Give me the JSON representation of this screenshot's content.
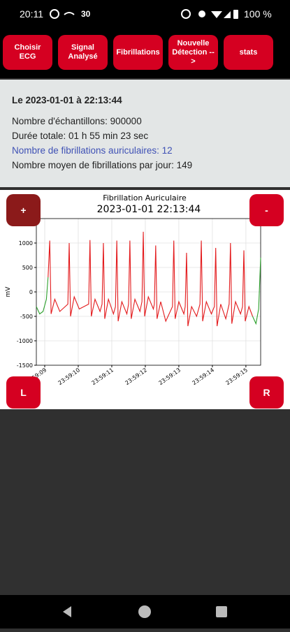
{
  "status_bar": {
    "time": "20:11",
    "network": "30",
    "battery": "100 %"
  },
  "toolbar": {
    "buttons": [
      "Choisir ECG",
      "Signal Analysé",
      "Fibrillations",
      "Nouvelle Détection -->",
      "stats"
    ]
  },
  "info": {
    "title": "Le 2023-01-01 à 22:13:44",
    "lines": [
      "Nombre d'échantillons: 900000",
      "Durée totale: 01 h 55 min 23 sec",
      "Nombre de fibrillations auriculaires: 12",
      "Nombre moyen de fibrillations par jour: 149"
    ]
  },
  "chart_buttons": {
    "zoom_in": "+",
    "zoom_out": "-",
    "left": "L",
    "right": "R"
  },
  "chart_data": {
    "type": "line",
    "title": "Fibrillation Auriculaire",
    "subtitle": "2023-01-01 22:13:44",
    "ylabel": "mV",
    "xlim": [
      8.75,
      15.44
    ],
    "ylim": [
      -1500,
      1500
    ],
    "grid": true,
    "yticks": [
      -1500,
      -1000,
      -500,
      0,
      500,
      1000
    ],
    "xticks": [
      {
        "value": 9,
        "label": "23:59:09"
      },
      {
        "value": 10,
        "label": "23:59:10"
      },
      {
        "value": 11,
        "label": "23:59:11"
      },
      {
        "value": 12,
        "label": "23:59:12"
      },
      {
        "value": 13,
        "label": "23:59:13"
      },
      {
        "value": 14,
        "label": "23:59:14"
      },
      {
        "value": 15,
        "label": "23:59:15"
      }
    ],
    "series": [
      {
        "color": "#2ca02c",
        "x": [
          8.75,
          8.85,
          8.95,
          9.05,
          9.1
        ],
        "values": [
          -300,
          -450,
          -400,
          -150,
          300
        ]
      },
      {
        "color": "#e31a1c",
        "x": [
          9.1,
          9.15,
          9.19,
          9.3,
          9.45,
          9.69,
          9.73,
          9.77,
          9.88,
          10.03,
          10.31,
          10.35,
          10.39,
          10.5,
          10.65,
          10.71,
          10.75,
          10.79,
          10.9,
          11.05,
          11.11,
          11.15,
          11.19,
          11.3,
          11.45,
          11.5,
          11.54,
          11.58,
          11.69,
          11.84,
          11.9,
          11.94,
          11.98,
          12.09,
          12.24,
          12.27,
          12.31,
          12.35,
          12.46,
          12.61,
          12.81,
          12.85,
          12.89,
          13.0,
          13.15,
          13.19,
          13.23,
          13.27,
          13.38,
          13.53,
          13.63,
          13.67,
          13.71,
          13.82,
          13.97,
          14.06,
          14.1,
          14.14,
          14.25,
          14.4,
          14.5,
          14.54,
          14.58,
          14.69,
          14.84,
          14.9,
          14.94,
          14.98,
          15.09,
          15.2
        ],
        "values": [
          300,
          1050,
          -450,
          -150,
          -400,
          -250,
          1000,
          -500,
          -100,
          -350,
          -250,
          1060,
          -500,
          -150,
          -400,
          -250,
          1000,
          -550,
          -150,
          -450,
          -300,
          1050,
          -600,
          -200,
          -450,
          -250,
          1050,
          -550,
          -150,
          -400,
          -200,
          1230,
          -500,
          -100,
          -350,
          -250,
          950,
          -550,
          -200,
          -600,
          -300,
          1050,
          -550,
          -200,
          -450,
          -300,
          800,
          -700,
          -300,
          -500,
          -250,
          1050,
          -600,
          -200,
          -450,
          -300,
          900,
          -700,
          -250,
          -550,
          -250,
          1000,
          -650,
          -200,
          -450,
          -300,
          850,
          -600,
          -300,
          -500
        ]
      },
      {
        "color": "#2ca02c",
        "x": [
          15.2,
          15.3,
          15.38,
          15.44
        ],
        "values": [
          -500,
          -650,
          -350,
          700
        ]
      }
    ]
  }
}
